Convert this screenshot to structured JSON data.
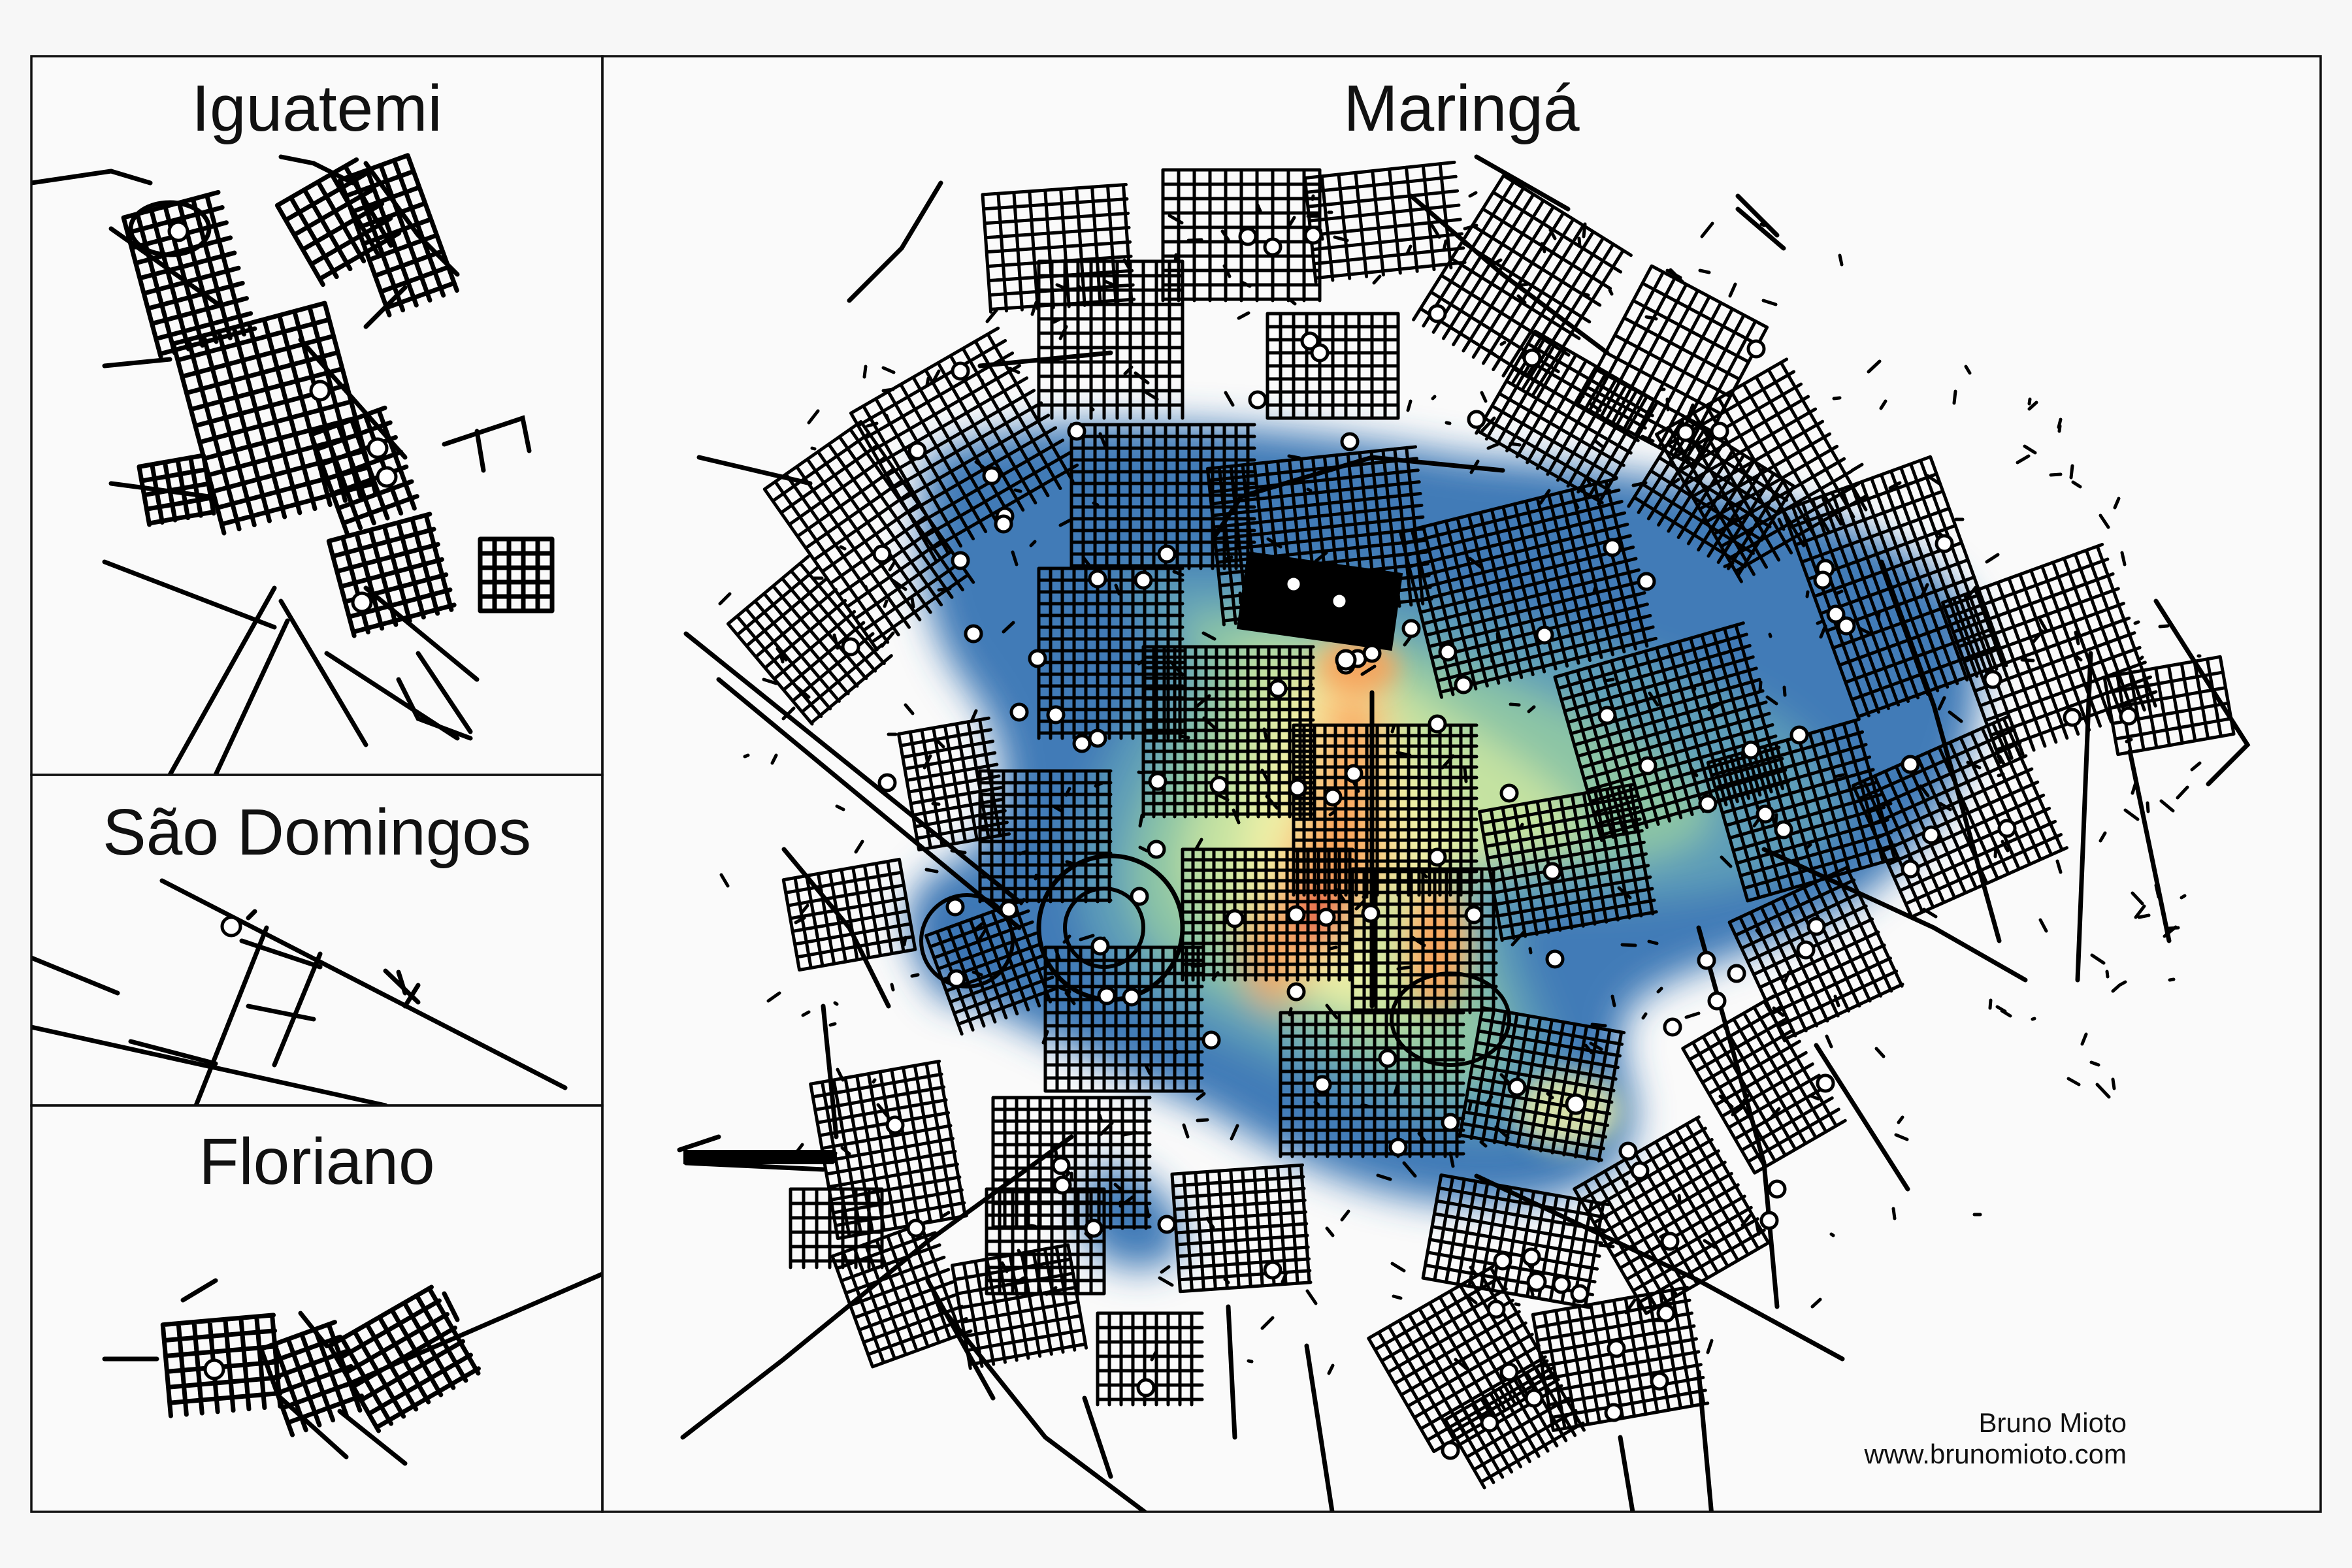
{
  "panels": [
    {
      "id": "iguatemi",
      "title": "Iguatemi"
    },
    {
      "id": "sao-domingos",
      "title": "São Domingos"
    },
    {
      "id": "floriano",
      "title": "Floriano"
    },
    {
      "id": "maringa",
      "title": "Maringá"
    }
  ],
  "credit": {
    "author": "Bruno Mioto",
    "website": "www.brunomioto.com"
  },
  "density_palette": [
    "#3a76b4",
    "#5f9fb8",
    "#8fc7a4",
    "#c6e3a0",
    "#eef0a8",
    "#fbd38a",
    "#f7a15a",
    "#ec6a43",
    "#d9383f"
  ],
  "colors": {
    "background": "#f7f7f7",
    "panel_background": "#fafafa",
    "streets": "#000000",
    "borders": "#111111",
    "point_fill": "#ffffff"
  }
}
